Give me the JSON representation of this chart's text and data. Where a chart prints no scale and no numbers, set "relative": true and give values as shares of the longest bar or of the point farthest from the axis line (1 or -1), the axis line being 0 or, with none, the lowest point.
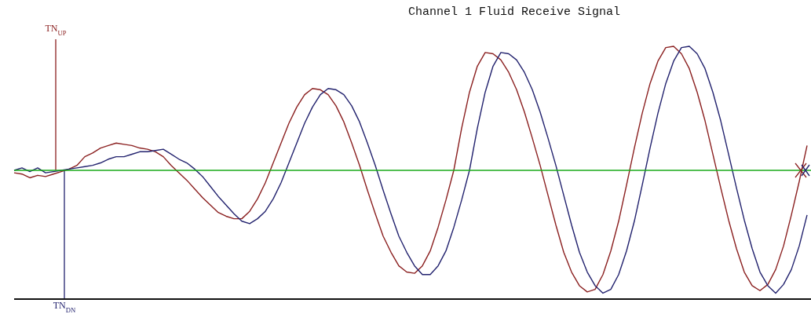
{
  "chart_data": {
    "type": "line",
    "title": "Channel 1 Fluid Receive Signal",
    "relative": true,
    "marker": "none",
    "line_style": "solid",
    "categories": [
      null,
      null,
      null,
      null,
      null,
      null,
      null,
      null,
      null,
      null,
      null,
      null,
      null,
      null,
      null,
      null,
      null,
      null,
      null,
      null,
      null,
      null,
      null,
      null,
      null,
      null,
      null,
      null,
      null,
      null,
      null,
      null,
      null,
      null,
      null,
      null,
      null,
      null,
      null,
      null,
      null,
      null,
      null,
      null,
      null,
      null,
      null,
      null,
      null,
      null,
      null,
      null,
      null,
      null,
      null,
      null,
      null,
      null,
      null,
      null,
      null,
      null,
      null,
      null,
      null,
      null,
      null,
      null,
      null,
      null,
      null,
      null,
      null,
      null,
      null,
      null,
      null,
      null,
      null,
      null,
      null,
      null,
      null,
      null,
      null,
      null,
      null,
      null,
      null,
      null,
      null,
      null,
      null,
      null,
      null,
      null,
      null,
      null,
      null,
      null,
      null,
      null
    ],
    "series": [
      {
        "color": "#8b2020",
        "values": [
          -0.02,
          -0.03,
          -0.06,
          -0.04,
          -0.05,
          -0.03,
          -0.01,
          0.01,
          0.04,
          0.11,
          0.14,
          0.18,
          0.2,
          0.22,
          0.21,
          0.2,
          0.18,
          0.17,
          0.15,
          0.11,
          0.04,
          -0.02,
          -0.08,
          -0.15,
          -0.22,
          -0.28,
          -0.34,
          -0.37,
          -0.39,
          -0.39,
          -0.33,
          -0.23,
          -0.1,
          0.06,
          0.22,
          0.38,
          0.51,
          0.61,
          0.66,
          0.65,
          0.61,
          0.52,
          0.39,
          0.22,
          0.04,
          -0.16,
          -0.35,
          -0.53,
          -0.66,
          -0.77,
          -0.82,
          -0.83,
          -0.77,
          -0.65,
          -0.46,
          -0.24,
          0,
          0.34,
          0.63,
          0.84,
          0.95,
          0.94,
          0.89,
          0.79,
          0.65,
          0.47,
          0.26,
          0.04,
          -0.2,
          -0.44,
          -0.66,
          -0.82,
          -0.93,
          -0.98,
          -0.96,
          -0.84,
          -0.65,
          -0.41,
          -0.12,
          0.18,
          0.46,
          0.7,
          0.88,
          0.99,
          1,
          0.94,
          0.82,
          0.63,
          0.4,
          0.13,
          -0.14,
          -0.4,
          -0.63,
          -0.82,
          -0.93,
          -0.97,
          -0.92,
          -0.8,
          -0.61,
          -0.36,
          -0.09,
          0.2
        ]
      },
      {
        "color": "#22226e",
        "values": [
          0,
          0.02,
          -0.01,
          0.02,
          -0.02,
          -0.01,
          0,
          0.01,
          0.02,
          0.03,
          0.04,
          0.06,
          0.09,
          0.11,
          0.11,
          0.13,
          0.15,
          0.15,
          0.16,
          0.17,
          0.13,
          0.09,
          0.06,
          0.01,
          -0.05,
          -0.13,
          -0.21,
          -0.28,
          -0.35,
          -0.41,
          -0.43,
          -0.39,
          -0.33,
          -0.23,
          -0.1,
          0.06,
          0.22,
          0.38,
          0.51,
          0.61,
          0.66,
          0.65,
          0.61,
          0.52,
          0.39,
          0.22,
          0.04,
          -0.16,
          -0.35,
          -0.53,
          -0.66,
          -0.77,
          -0.84,
          -0.84,
          -0.77,
          -0.65,
          -0.46,
          -0.24,
          0,
          0.34,
          0.63,
          0.84,
          0.95,
          0.94,
          0.89,
          0.79,
          0.65,
          0.47,
          0.26,
          0.04,
          -0.2,
          -0.44,
          -0.66,
          -0.82,
          -0.93,
          -0.99,
          -0.96,
          -0.84,
          -0.65,
          -0.41,
          -0.12,
          0.18,
          0.46,
          0.7,
          0.88,
          0.99,
          1,
          0.94,
          0.82,
          0.63,
          0.4,
          0.13,
          -0.14,
          -0.4,
          -0.63,
          -0.82,
          -0.93,
          -0.99,
          -0.92,
          -0.8,
          -0.61,
          -0.36
        ]
      }
    ],
    "ref_lines": [
      {
        "axis": "y",
        "value": 0,
        "color": "#1aaa1a"
      }
    ],
    "annotations": [
      "TN$_{UP}$",
      "TN$_{DN}$"
    ]
  }
}
